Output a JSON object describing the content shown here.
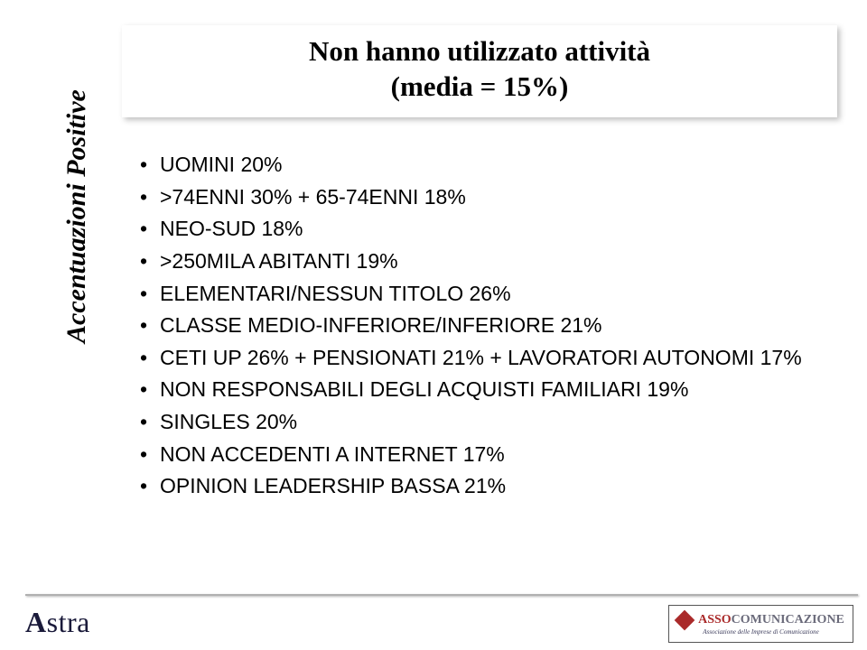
{
  "title": {
    "line1": "Non hanno utilizzato attività",
    "line2": "(media = 15%)"
  },
  "sidebar_label": "Accentuazioni Positive",
  "bullets": [
    "UOMINI 20%",
    ">74ENNI 30% + 65-74ENNI 18%",
    "NEO-SUD 18%",
    ">250MILA ABITANTI 19%",
    "ELEMENTARI/NESSUN TITOLO 26%",
    "CLASSE MEDIO-INFERIORE/INFERIORE 21%",
    "CETI UP 26% + PENSIONATI 21% + LAVORATORI AUTONOMI 17%",
    "NON RESPONSABILI DEGLI ACQUISTI FAMILIARI 19%",
    "SINGLES 20%",
    "NON ACCEDENTI A INTERNET 17%",
    "OPINION LEADERSHIP BASSA 21%"
  ],
  "footer": {
    "left_logo": "Astra",
    "right_logo_red": "ASSO",
    "right_logo_gray": "COMUNICAZIONE",
    "right_logo_sub": "Associazione delle Imprese di Comunicazione"
  },
  "colors": {
    "background": "#ffffff",
    "text": "#000000",
    "shadow": "rgba(0,0,0,0.25)",
    "footer_line": "#b0b0b0",
    "astra": "#1a1a3a",
    "asso_red": "#aa2a2a",
    "asso_gray": "#6a6a7a"
  }
}
